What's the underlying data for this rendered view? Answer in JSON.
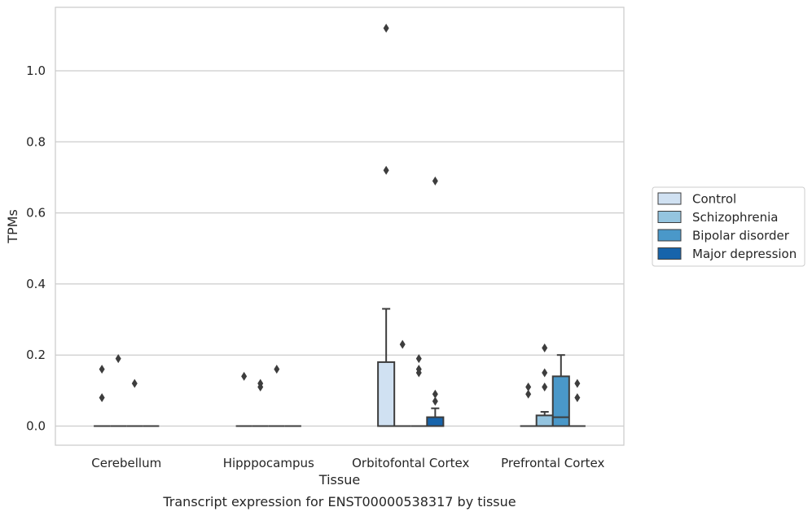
{
  "caption": "Transcript expression for ENST00000538317 by tissue",
  "chart_data": {
    "type": "box",
    "xlabel": "Tissue",
    "ylabel": "TPMs",
    "ylim": [
      -0.055,
      1.18
    ],
    "yticks": [
      0.0,
      0.2,
      0.4,
      0.6,
      0.8,
      1.0
    ],
    "ytick_labels": [
      "0.0",
      "0.2",
      "0.4",
      "0.6",
      "0.8",
      "1.0"
    ],
    "grid": "horizontal",
    "legend_position": "right",
    "categories": [
      "Cerebellum",
      "Hipppocampus",
      "Orbitofontal Cortex",
      "Prefrontal Cortex"
    ],
    "series": [
      {
        "name": "Control",
        "color": "#d0e1f2",
        "boxes": [
          {
            "q1": 0,
            "median": 0,
            "q3": 0,
            "whislo": 0,
            "whishi": 0,
            "fliers": [
              0.08,
              0.16
            ]
          },
          {
            "q1": 0,
            "median": 0,
            "q3": 0,
            "whislo": 0,
            "whishi": 0,
            "fliers": [
              0.14
            ]
          },
          {
            "q1": 0,
            "median": 0,
            "q3": 0.18,
            "whislo": 0,
            "whishi": 0.33,
            "fliers": [
              0.72,
              1.12
            ]
          },
          {
            "q1": 0,
            "median": 0,
            "q3": 0,
            "whislo": 0,
            "whishi": 0,
            "fliers": [
              0.09,
              0.11
            ]
          }
        ]
      },
      {
        "name": "Schizophrenia",
        "color": "#94c4df",
        "boxes": [
          {
            "q1": 0,
            "median": 0,
            "q3": 0,
            "whislo": 0,
            "whishi": 0,
            "fliers": [
              0.19
            ]
          },
          {
            "q1": 0,
            "median": 0,
            "q3": 0,
            "whislo": 0,
            "whishi": 0,
            "fliers": [
              0.11,
              0.12
            ]
          },
          {
            "q1": 0,
            "median": 0,
            "q3": 0,
            "whislo": 0,
            "whishi": 0,
            "fliers": [
              0.23
            ]
          },
          {
            "q1": 0,
            "median": 0,
            "q3": 0.03,
            "whislo": 0,
            "whishi": 0.04,
            "fliers": [
              0.11,
              0.15,
              0.22
            ]
          }
        ]
      },
      {
        "name": "Bipolar disorder",
        "color": "#4a98c9",
        "boxes": [
          {
            "q1": 0,
            "median": 0,
            "q3": 0,
            "whislo": 0,
            "whishi": 0,
            "fliers": [
              0.12
            ]
          },
          {
            "q1": 0,
            "median": 0,
            "q3": 0,
            "whislo": 0,
            "whishi": 0,
            "fliers": [
              0.16
            ]
          },
          {
            "q1": 0,
            "median": 0,
            "q3": 0,
            "whislo": 0,
            "whishi": 0,
            "fliers": [
              0.15,
              0.16,
              0.19
            ]
          },
          {
            "q1": 0,
            "median": 0.025,
            "q3": 0.14,
            "whislo": 0,
            "whishi": 0.2,
            "fliers": []
          }
        ]
      },
      {
        "name": "Major depression",
        "color": "#1764ab",
        "boxes": [
          {
            "q1": 0,
            "median": 0,
            "q3": 0,
            "whislo": 0,
            "whishi": 0,
            "fliers": []
          },
          {
            "q1": 0,
            "median": 0,
            "q3": 0,
            "whislo": 0,
            "whishi": 0,
            "fliers": []
          },
          {
            "q1": 0,
            "median": 0,
            "q3": 0.025,
            "whislo": 0,
            "whishi": 0.05,
            "fliers": [
              0.07,
              0.09,
              0.69
            ]
          },
          {
            "q1": 0,
            "median": 0,
            "q3": 0,
            "whislo": 0,
            "whishi": 0,
            "fliers": [
              0.08,
              0.12
            ]
          }
        ]
      }
    ]
  }
}
